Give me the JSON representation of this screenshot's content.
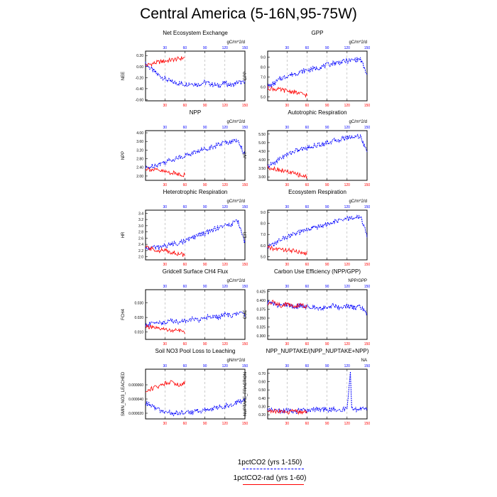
{
  "title": "Central America (5-16N,95-75W)",
  "legend": [
    {
      "label": "1pctCO2 (yrs 1-150)",
      "color": "#0000ff",
      "dash": true
    },
    {
      "label": "1pctCO2-rad (yrs 1-60)",
      "color": "#ff0000",
      "dash": false
    }
  ],
  "colors": {
    "ctrl": "#0000ff",
    "rad": "#ff0000",
    "grid": "#999999"
  },
  "chart_data": [
    {
      "type": "line",
      "title": "Net Ecosystem Exchange",
      "units": "gC/m^2/d",
      "ylabel": "NEE",
      "yticks": [
        "0.20",
        "0.00",
        "-0.20",
        "-0.40",
        "-0.60"
      ],
      "ylim": [
        -0.62,
        0.28
      ],
      "x_top_ticks": [
        "30",
        "60",
        "90",
        "120",
        "150"
      ],
      "x_bottom_ticks": [
        "30",
        "60",
        "90",
        "120",
        "150"
      ],
      "xlim": [
        1,
        150
      ],
      "series": [
        {
          "name": "1pctCO2 (yrs 1-150)",
          "x": [
            1,
            10,
            20,
            30,
            40,
            50,
            60,
            70,
            80,
            90,
            100,
            110,
            120,
            130,
            140,
            150
          ],
          "y": [
            0.05,
            -0.05,
            -0.15,
            -0.22,
            -0.28,
            -0.3,
            -0.32,
            -0.3,
            -0.33,
            -0.28,
            -0.32,
            -0.35,
            -0.3,
            -0.34,
            -0.28,
            -0.3
          ]
        },
        {
          "name": "1pctCO2-rad (yrs 1-60)",
          "x": [
            1,
            10,
            20,
            30,
            40,
            50,
            60
          ],
          "y": [
            0.02,
            0.05,
            0.08,
            0.1,
            0.12,
            0.14,
            0.16
          ]
        }
      ]
    },
    {
      "type": "line",
      "title": "GPP",
      "units": "gC/m^2/d",
      "ylabel": "GPP",
      "yticks": [
        "9.0",
        "8.0",
        "7.0",
        "6.0",
        "5.0"
      ],
      "ylim": [
        4.6,
        9.6
      ],
      "x_top_ticks": [
        "30",
        "60",
        "90",
        "120",
        "150"
      ],
      "x_bottom_ticks": [
        "30",
        "60",
        "90",
        "120",
        "150"
      ],
      "xlim": [
        1,
        150
      ],
      "series": [
        {
          "name": "1pctCO2 (yrs 1-150)",
          "x": [
            1,
            10,
            20,
            30,
            40,
            50,
            60,
            70,
            80,
            90,
            100,
            110,
            120,
            130,
            140,
            150
          ],
          "y": [
            6.0,
            6.3,
            6.8,
            7.1,
            7.3,
            7.5,
            7.7,
            7.8,
            8.0,
            8.2,
            8.4,
            8.5,
            8.6,
            8.7,
            8.8,
            7.2
          ]
        },
        {
          "name": "1pctCO2-rad (yrs 1-60)",
          "x": [
            1,
            10,
            20,
            30,
            40,
            50,
            60
          ],
          "y": [
            5.9,
            5.8,
            5.7,
            5.6,
            5.5,
            5.3,
            5.2
          ]
        }
      ]
    },
    {
      "type": "line",
      "title": "NPP",
      "units": "gC/m^2/d",
      "ylabel": "NPP",
      "yticks": [
        "4.00",
        "3.60",
        "3.20",
        "2.80",
        "2.40",
        "2.00"
      ],
      "ylim": [
        1.8,
        4.1
      ],
      "x_top_ticks": [
        "30",
        "60",
        "90",
        "120",
        "150"
      ],
      "x_bottom_ticks": [
        "30",
        "60",
        "90",
        "120",
        "150"
      ],
      "xlim": [
        1,
        150
      ],
      "series": [
        {
          "name": "1pctCO2 (yrs 1-150)",
          "x": [
            1,
            10,
            20,
            30,
            40,
            50,
            60,
            70,
            80,
            90,
            100,
            110,
            120,
            130,
            140,
            150
          ],
          "y": [
            2.35,
            2.45,
            2.55,
            2.65,
            2.75,
            2.85,
            2.95,
            3.05,
            3.15,
            3.25,
            3.35,
            3.45,
            3.55,
            3.6,
            3.65,
            2.95
          ]
        },
        {
          "name": "1pctCO2-rad (yrs 1-60)",
          "x": [
            1,
            10,
            20,
            30,
            40,
            50,
            60
          ],
          "y": [
            2.35,
            2.3,
            2.25,
            2.2,
            2.15,
            2.1,
            2.05
          ]
        }
      ]
    },
    {
      "type": "line",
      "title": "Autotrophic Respiration",
      "units": "gC/m^2/d",
      "ylabel": "AR",
      "yticks": [
        "5.50",
        "5.00",
        "4.50",
        "4.00",
        "3.50",
        "3.00"
      ],
      "ylim": [
        2.8,
        5.7
      ],
      "x_top_ticks": [
        "30",
        "60",
        "90",
        "120",
        "150"
      ],
      "x_bottom_ticks": [
        "30",
        "60",
        "90",
        "120",
        "150"
      ],
      "xlim": [
        1,
        150
      ],
      "series": [
        {
          "name": "1pctCO2 (yrs 1-150)",
          "x": [
            1,
            10,
            20,
            30,
            40,
            50,
            60,
            70,
            80,
            90,
            100,
            110,
            120,
            130,
            140,
            150
          ],
          "y": [
            3.6,
            3.8,
            4.1,
            4.3,
            4.5,
            4.6,
            4.7,
            4.8,
            4.9,
            5.0,
            5.1,
            5.2,
            5.3,
            5.35,
            5.4,
            4.4
          ]
        },
        {
          "name": "1pctCO2-rad (yrs 1-60)",
          "x": [
            1,
            10,
            20,
            30,
            40,
            50,
            60
          ],
          "y": [
            3.55,
            3.5,
            3.4,
            3.3,
            3.2,
            3.1,
            3.0
          ]
        }
      ]
    },
    {
      "type": "line",
      "title": "Heterotrophic Respiration",
      "units": "gC/m^2/d",
      "ylabel": "HR",
      "yticks": [
        "3.4",
        "3.2",
        "3.0",
        "2.8",
        "2.6",
        "2.4",
        "2.2",
        "2.0"
      ],
      "ylim": [
        1.9,
        3.5
      ],
      "x_top_ticks": [
        "30",
        "60",
        "90",
        "120",
        "150"
      ],
      "x_bottom_ticks": [
        "30",
        "60",
        "90",
        "120",
        "150"
      ],
      "xlim": [
        1,
        150
      ],
      "series": [
        {
          "name": "1pctCO2 (yrs 1-150)",
          "x": [
            1,
            10,
            20,
            30,
            40,
            50,
            60,
            70,
            80,
            90,
            100,
            110,
            120,
            130,
            140,
            150
          ],
          "y": [
            2.25,
            2.3,
            2.3,
            2.35,
            2.4,
            2.45,
            2.5,
            2.6,
            2.7,
            2.75,
            2.85,
            2.95,
            3.0,
            3.05,
            3.15,
            2.45
          ]
        },
        {
          "name": "1pctCO2-rad (yrs 1-60)",
          "x": [
            1,
            10,
            20,
            30,
            40,
            50,
            60
          ],
          "y": [
            2.3,
            2.25,
            2.2,
            2.2,
            2.15,
            2.1,
            2.05
          ]
        }
      ]
    },
    {
      "type": "line",
      "title": "Ecosystem Respiration",
      "units": "gC/m^2/d",
      "ylabel": "ER",
      "yticks": [
        "9.0",
        "8.0",
        "7.0",
        "6.0",
        "5.0"
      ],
      "ylim": [
        4.7,
        9.2
      ],
      "x_top_ticks": [
        "30",
        "60",
        "90",
        "120",
        "150"
      ],
      "x_bottom_ticks": [
        "30",
        "60",
        "90",
        "120",
        "150"
      ],
      "xlim": [
        1,
        150
      ],
      "series": [
        {
          "name": "1pctCO2 (yrs 1-150)",
          "x": [
            1,
            10,
            20,
            30,
            40,
            50,
            60,
            70,
            80,
            90,
            100,
            110,
            120,
            130,
            140,
            150
          ],
          "y": [
            5.9,
            6.1,
            6.5,
            6.8,
            7.0,
            7.2,
            7.4,
            7.6,
            7.8,
            7.9,
            8.1,
            8.3,
            8.4,
            8.5,
            8.6,
            6.9
          ]
        },
        {
          "name": "1pctCO2-rad (yrs 1-60)",
          "x": [
            1,
            10,
            20,
            30,
            40,
            50,
            60
          ],
          "y": [
            5.8,
            5.7,
            5.65,
            5.6,
            5.5,
            5.4,
            5.3
          ]
        }
      ]
    },
    {
      "type": "line",
      "title": "Gridcell Surface CH4 Flux",
      "units": "gC/m^2/d",
      "ylabel": "FCH4",
      "yticks": [
        "0.030",
        "0.020",
        "0.010"
      ],
      "ylim": [
        0.005,
        0.039
      ],
      "x_top_ticks": [
        "30",
        "60",
        "90",
        "120",
        "150"
      ],
      "x_bottom_ticks": [
        "30",
        "60",
        "90",
        "120",
        "150"
      ],
      "xlim": [
        1,
        150
      ],
      "series": [
        {
          "name": "1pctCO2 (yrs 1-150)",
          "x": [
            1,
            10,
            20,
            30,
            40,
            50,
            60,
            70,
            80,
            90,
            100,
            110,
            120,
            130,
            140,
            150
          ],
          "y": [
            0.014,
            0.016,
            0.017,
            0.016,
            0.018,
            0.017,
            0.018,
            0.019,
            0.018,
            0.02,
            0.021,
            0.02,
            0.022,
            0.021,
            0.023,
            0.022
          ]
        },
        {
          "name": "1pctCO2-rad (yrs 1-60)",
          "x": [
            1,
            10,
            20,
            30,
            40,
            50,
            60
          ],
          "y": [
            0.014,
            0.013,
            0.012,
            0.012,
            0.011,
            0.011,
            0.01
          ]
        }
      ]
    },
    {
      "type": "line",
      "title": "Carbon Use Efficiency (NPP/GPP)",
      "units": "NPP/GPP",
      "ylabel": "CUE",
      "yticks": [
        "0.425",
        "0.400",
        "0.375",
        "0.350",
        "0.325",
        "0.300"
      ],
      "ylim": [
        0.29,
        0.43
      ],
      "x_top_ticks": [
        "30",
        "60",
        "90",
        "120",
        "150"
      ],
      "x_bottom_ticks": [
        "30",
        "60",
        "90",
        "120",
        "150"
      ],
      "xlim": [
        1,
        150
      ],
      "series": [
        {
          "name": "1pctCO2 (yrs 1-150)",
          "x": [
            1,
            10,
            20,
            30,
            40,
            50,
            60,
            70,
            80,
            90,
            100,
            110,
            120,
            130,
            140,
            150
          ],
          "y": [
            0.395,
            0.39,
            0.385,
            0.388,
            0.382,
            0.385,
            0.38,
            0.383,
            0.378,
            0.382,
            0.385,
            0.38,
            0.384,
            0.378,
            0.382,
            0.36
          ]
        },
        {
          "name": "1pctCO2-rad (yrs 1-60)",
          "x": [
            1,
            10,
            20,
            30,
            40,
            50,
            60
          ],
          "y": [
            0.39,
            0.395,
            0.385,
            0.39,
            0.382,
            0.388,
            0.38
          ]
        }
      ]
    },
    {
      "type": "line",
      "title": "Soil NO3 Pool Loss to Leaching",
      "units": "gN/m^2/d",
      "ylabel": "SMIN_NO3_LEACHED",
      "yticks": [
        "0.000060",
        "0.000040",
        "0.000020"
      ],
      "ylim": [
        1.2e-05,
        8.2e-05
      ],
      "x_top_ticks": [
        "30",
        "60",
        "90",
        "120",
        "150"
      ],
      "x_bottom_ticks": [
        "30",
        "60",
        "90",
        "120",
        "150"
      ],
      "xlim": [
        1,
        150
      ],
      "series": [
        {
          "name": "1pctCO2 (yrs 1-150)",
          "x": [
            1,
            10,
            20,
            30,
            40,
            50,
            60,
            70,
            80,
            90,
            100,
            110,
            120,
            130,
            140,
            150
          ],
          "y": [
            3.5e-05,
            3e-05,
            2.5e-05,
            2.2e-05,
            2e-05,
            2e-05,
            2.1e-05,
            2.2e-05,
            2.3e-05,
            2.5e-05,
            2.6e-05,
            2.8e-05,
            3e-05,
            3.2e-05,
            3.6e-05,
            4e-05
          ]
        },
        {
          "name": "1pctCO2-rad (yrs 1-60)",
          "x": [
            1,
            10,
            20,
            30,
            40,
            50,
            60
          ],
          "y": [
            5e-05,
            5.5e-05,
            5.8e-05,
            6.2e-05,
            6.5e-05,
            6e-05,
            6.3e-05
          ]
        }
      ]
    },
    {
      "type": "line",
      "title": "NPP_NUPTAKE/(NPP_NUPTAKE+NPP)",
      "units": "NA",
      "ylabel": "NUPTAKE_FRACTION",
      "yticks": [
        "0.70",
        "0.60",
        "0.50",
        "0.40",
        "0.30",
        "0.20"
      ],
      "ylim": [
        0.15,
        0.75
      ],
      "x_top_ticks": [
        "30",
        "60",
        "90",
        "120",
        "150"
      ],
      "x_bottom_ticks": [
        "30",
        "60",
        "90",
        "120",
        "150"
      ],
      "xlim": [
        1,
        150
      ],
      "series": [
        {
          "name": "1pctCO2 (yrs 1-150)",
          "x": [
            1,
            10,
            20,
            30,
            40,
            50,
            60,
            70,
            80,
            90,
            100,
            110,
            120,
            125,
            127,
            130,
            140,
            150
          ],
          "y": [
            0.27,
            0.26,
            0.25,
            0.25,
            0.24,
            0.25,
            0.25,
            0.26,
            0.26,
            0.26,
            0.27,
            0.26,
            0.27,
            0.72,
            0.27,
            0.27,
            0.26,
            0.27
          ]
        },
        {
          "name": "1pctCO2-rad (yrs 1-60)",
          "x": [
            1,
            10,
            20,
            30,
            40,
            50,
            60
          ],
          "y": [
            0.25,
            0.24,
            0.24,
            0.23,
            0.24,
            0.23,
            0.24
          ]
        }
      ]
    }
  ]
}
